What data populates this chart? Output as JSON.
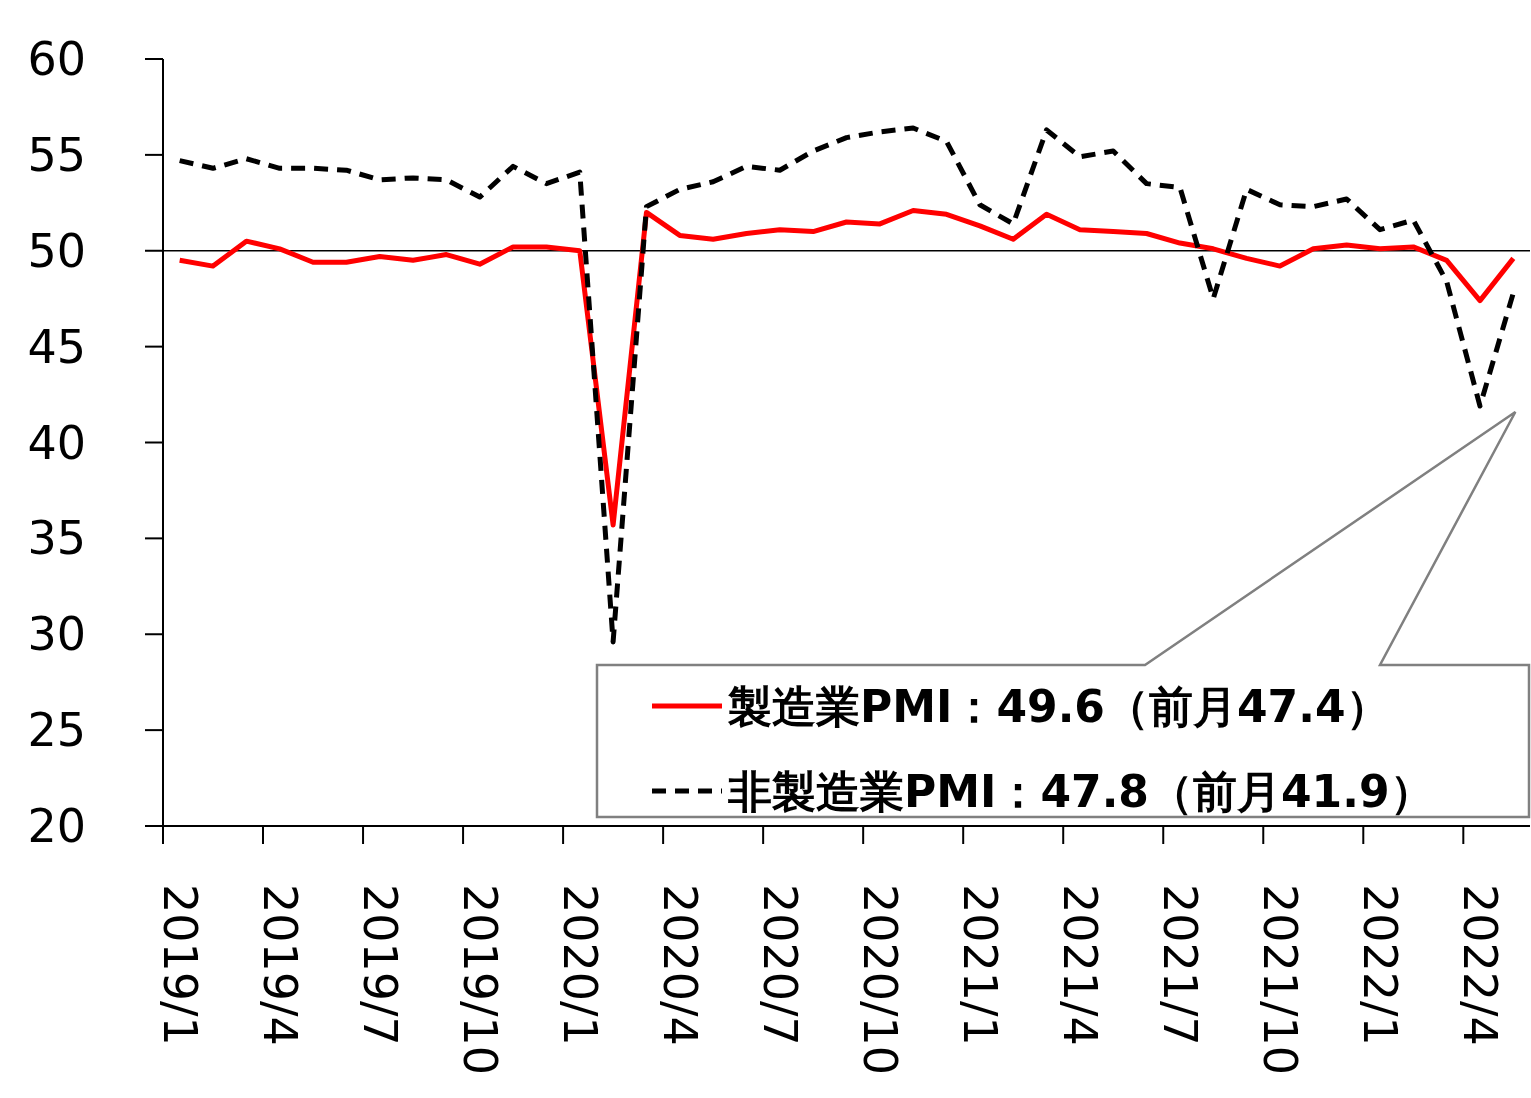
{
  "chart_data": {
    "type": "line",
    "categories": [
      "2019/1",
      null,
      null,
      "2019/4",
      null,
      null,
      "2019/7",
      null,
      null,
      "2019/10",
      null,
      null,
      "2020/1",
      null,
      null,
      "2020/4",
      null,
      null,
      "2020/7",
      null,
      null,
      "2020/10",
      null,
      null,
      "2021/1",
      null,
      null,
      "2021/4",
      null,
      null,
      "2021/7",
      null,
      null,
      "2021/10",
      null,
      null,
      "2022/1",
      null,
      null,
      "2022/4",
      null
    ],
    "series": [
      {
        "name": "製造業PMI：49.6（前月47.4）",
        "color": "#ff0000",
        "line_style": "solid",
        "values": [
          49.5,
          49.2,
          50.5,
          50.1,
          49.4,
          49.4,
          49.7,
          49.5,
          49.8,
          49.3,
          50.2,
          50.2,
          50.0,
          35.7,
          52.0,
          50.8,
          50.6,
          50.9,
          51.1,
          51.0,
          51.5,
          51.4,
          52.1,
          51.9,
          51.3,
          50.6,
          51.9,
          51.1,
          51.0,
          50.9,
          50.4,
          50.1,
          49.6,
          49.2,
          50.1,
          50.3,
          50.1,
          50.2,
          49.5,
          47.4,
          49.6
        ]
      },
      {
        "name": "非製造業PMI：47.8（前月41.9）",
        "color": "#000000",
        "line_style": "dashed",
        "values": [
          54.7,
          54.3,
          54.8,
          54.3,
          54.3,
          54.2,
          53.7,
          53.8,
          53.7,
          52.8,
          54.4,
          53.5,
          54.1,
          29.6,
          52.3,
          53.2,
          53.6,
          54.4,
          54.2,
          55.2,
          55.9,
          56.2,
          56.4,
          55.7,
          52.4,
          51.4,
          56.3,
          54.9,
          55.2,
          53.5,
          53.3,
          47.5,
          53.2,
          52.4,
          52.3,
          52.7,
          51.1,
          51.6,
          48.4,
          41.9,
          47.8
        ]
      }
    ],
    "ylim": [
      20,
      60
    ],
    "yticks": [
      20,
      25,
      30,
      35,
      40,
      45,
      50,
      55,
      60
    ],
    "ref_lines": [
      {
        "axis": "y",
        "value": 50,
        "color": "#000000"
      }
    ],
    "grid": false,
    "legend": "bottom right",
    "marker": "none"
  }
}
